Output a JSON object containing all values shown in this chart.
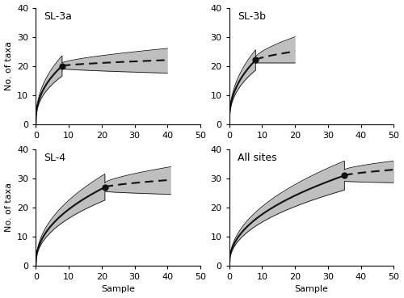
{
  "panels": [
    {
      "label": "SL-3a",
      "ref_x": 8,
      "ref_y": 20,
      "extrap_x_end": 40,
      "extrap_y_end": 22,
      "ci_upper_at_ref": 21,
      "ci_lower_at_ref": 19,
      "ci_upper_end": 26,
      "ci_lower_end": 17.5,
      "rare_ci_spread": 3.5,
      "is_solid_rare": false,
      "start_ci_upper": 2,
      "start_ci_lower": 0,
      "rare_power": 0.42,
      "extrap_power": 0.7
    },
    {
      "label": "SL-3b",
      "ref_x": 8,
      "ref_y": 22,
      "extrap_x_end": 20,
      "extrap_y_end": 25,
      "ci_upper_at_ref": 23,
      "ci_lower_at_ref": 21,
      "ci_upper_end": 30,
      "ci_lower_end": 21,
      "rare_ci_spread": 3.5,
      "is_solid_rare": false,
      "start_ci_upper": 2,
      "start_ci_lower": 0,
      "rare_power": 0.42,
      "extrap_power": 0.7
    },
    {
      "label": "SL-4",
      "ref_x": 21,
      "ref_y": 27,
      "extrap_x_end": 41,
      "extrap_y_end": 29.5,
      "ci_upper_at_ref": 28.5,
      "ci_lower_at_ref": 25.5,
      "ci_upper_end": 34,
      "ci_lower_end": 24.5,
      "rare_ci_spread": 4.5,
      "is_solid_rare": false,
      "start_ci_upper": 2,
      "start_ci_lower": 0,
      "rare_power": 0.45,
      "extrap_power": 0.7
    },
    {
      "label": "All sites",
      "ref_x": 35,
      "ref_y": 31,
      "extrap_x_end": 50,
      "extrap_y_end": 33,
      "ci_upper_at_ref": 33,
      "ci_lower_at_ref": 29,
      "ci_upper_end": 36,
      "ci_lower_end": 28.5,
      "rare_ci_spread": 5.0,
      "is_solid_rare": true,
      "start_ci_upper": 2,
      "start_ci_lower": 0,
      "rare_power": 0.45,
      "extrap_power": 0.7
    }
  ],
  "xlim": [
    0,
    50
  ],
  "ylim": [
    0,
    40
  ],
  "xticks": [
    0,
    10,
    20,
    30,
    40,
    50
  ],
  "yticks": [
    0,
    10,
    20,
    30,
    40
  ],
  "xlabel": "Sample",
  "ylabel": "No. of taxa",
  "ci_color": "#aaaaaa",
  "line_color": "#111111",
  "ref_dot_color": "#111111",
  "background_color": "#ffffff",
  "label_fontsize": 9,
  "axis_fontsize": 8
}
